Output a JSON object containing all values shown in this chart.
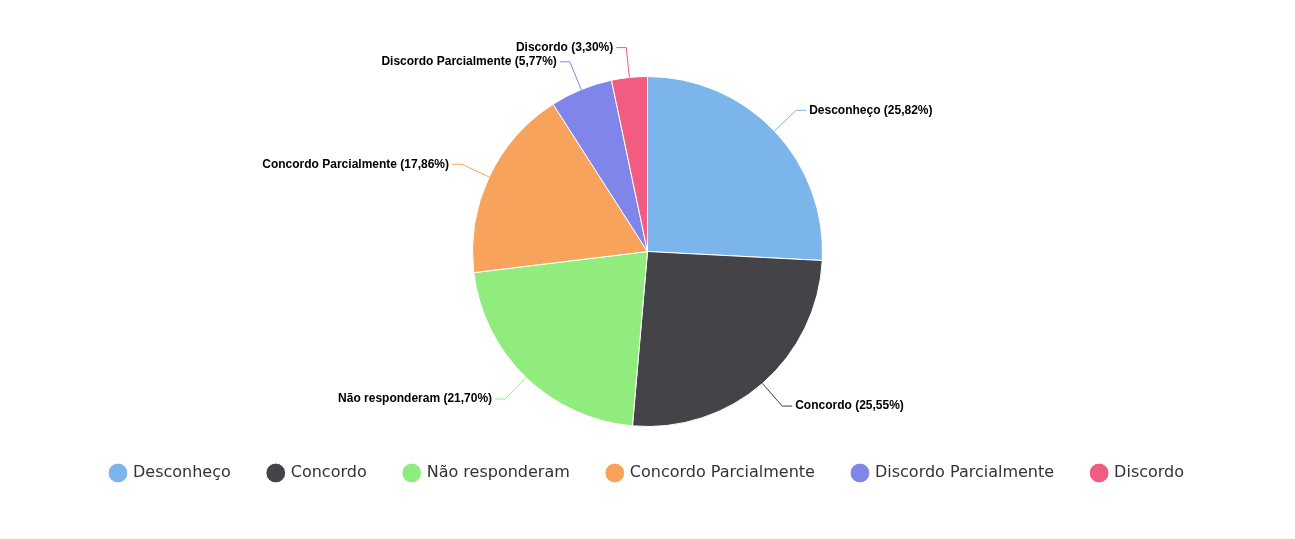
{
  "chart_data": {
    "type": "pie",
    "categories": [
      "Desconheço",
      "Concordo",
      "Não responderam",
      "Concordo Parcialmente",
      "Discordo Parcialmente",
      "Discordo"
    ],
    "values": [
      25.82,
      25.55,
      21.7,
      17.86,
      5.77,
      3.3
    ],
    "colors": [
      "#7cb5ec",
      "#434348",
      "#90ed7d",
      "#f7a35c",
      "#8085e9",
      "#f15c80"
    ],
    "value_labels": [
      "(25,82%)",
      "(25,55%)",
      "(21,70%)",
      "(17,86%)",
      "(5,77%)",
      "(3,30%)"
    ],
    "legend": "bottom"
  }
}
